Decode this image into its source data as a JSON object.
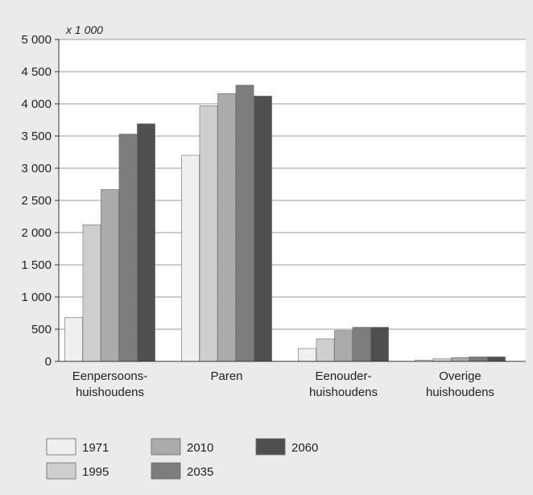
{
  "chart_data": {
    "type": "bar",
    "unit_label": "x 1 000",
    "categories": [
      [
        "Eenpersoons-",
        "huishoudens"
      ],
      [
        "Paren"
      ],
      [
        "Eenouder-",
        "huishoudens"
      ],
      [
        "Overige",
        "huishoudens"
      ]
    ],
    "series": [
      {
        "name": "1971",
        "color": "#efefef",
        "values": [
          680,
          3200,
          200,
          20
        ]
      },
      {
        "name": "1995",
        "color": "#cfcfcf",
        "values": [
          2120,
          3970,
          350,
          40
        ]
      },
      {
        "name": "2010",
        "color": "#ababab",
        "values": [
          2670,
          4160,
          480,
          60
        ]
      },
      {
        "name": "2035",
        "color": "#7d7d7d",
        "values": [
          3530,
          4290,
          530,
          70
        ]
      },
      {
        "name": "2060",
        "color": "#4f4f4f",
        "values": [
          3690,
          4120,
          530,
          70
        ]
      }
    ],
    "ylim": [
      0,
      5000
    ],
    "yticks": [
      0,
      500,
      1000,
      1500,
      2000,
      2500,
      3000,
      3500,
      4000,
      4500,
      5000
    ],
    "ytick_labels": [
      "0",
      "500",
      "1 000",
      "1 500",
      "2 000",
      "2 500",
      "3 000",
      "3 500",
      "4 000",
      "4 500",
      "5 000"
    ],
    "grid": true,
    "legend": "bottom"
  }
}
